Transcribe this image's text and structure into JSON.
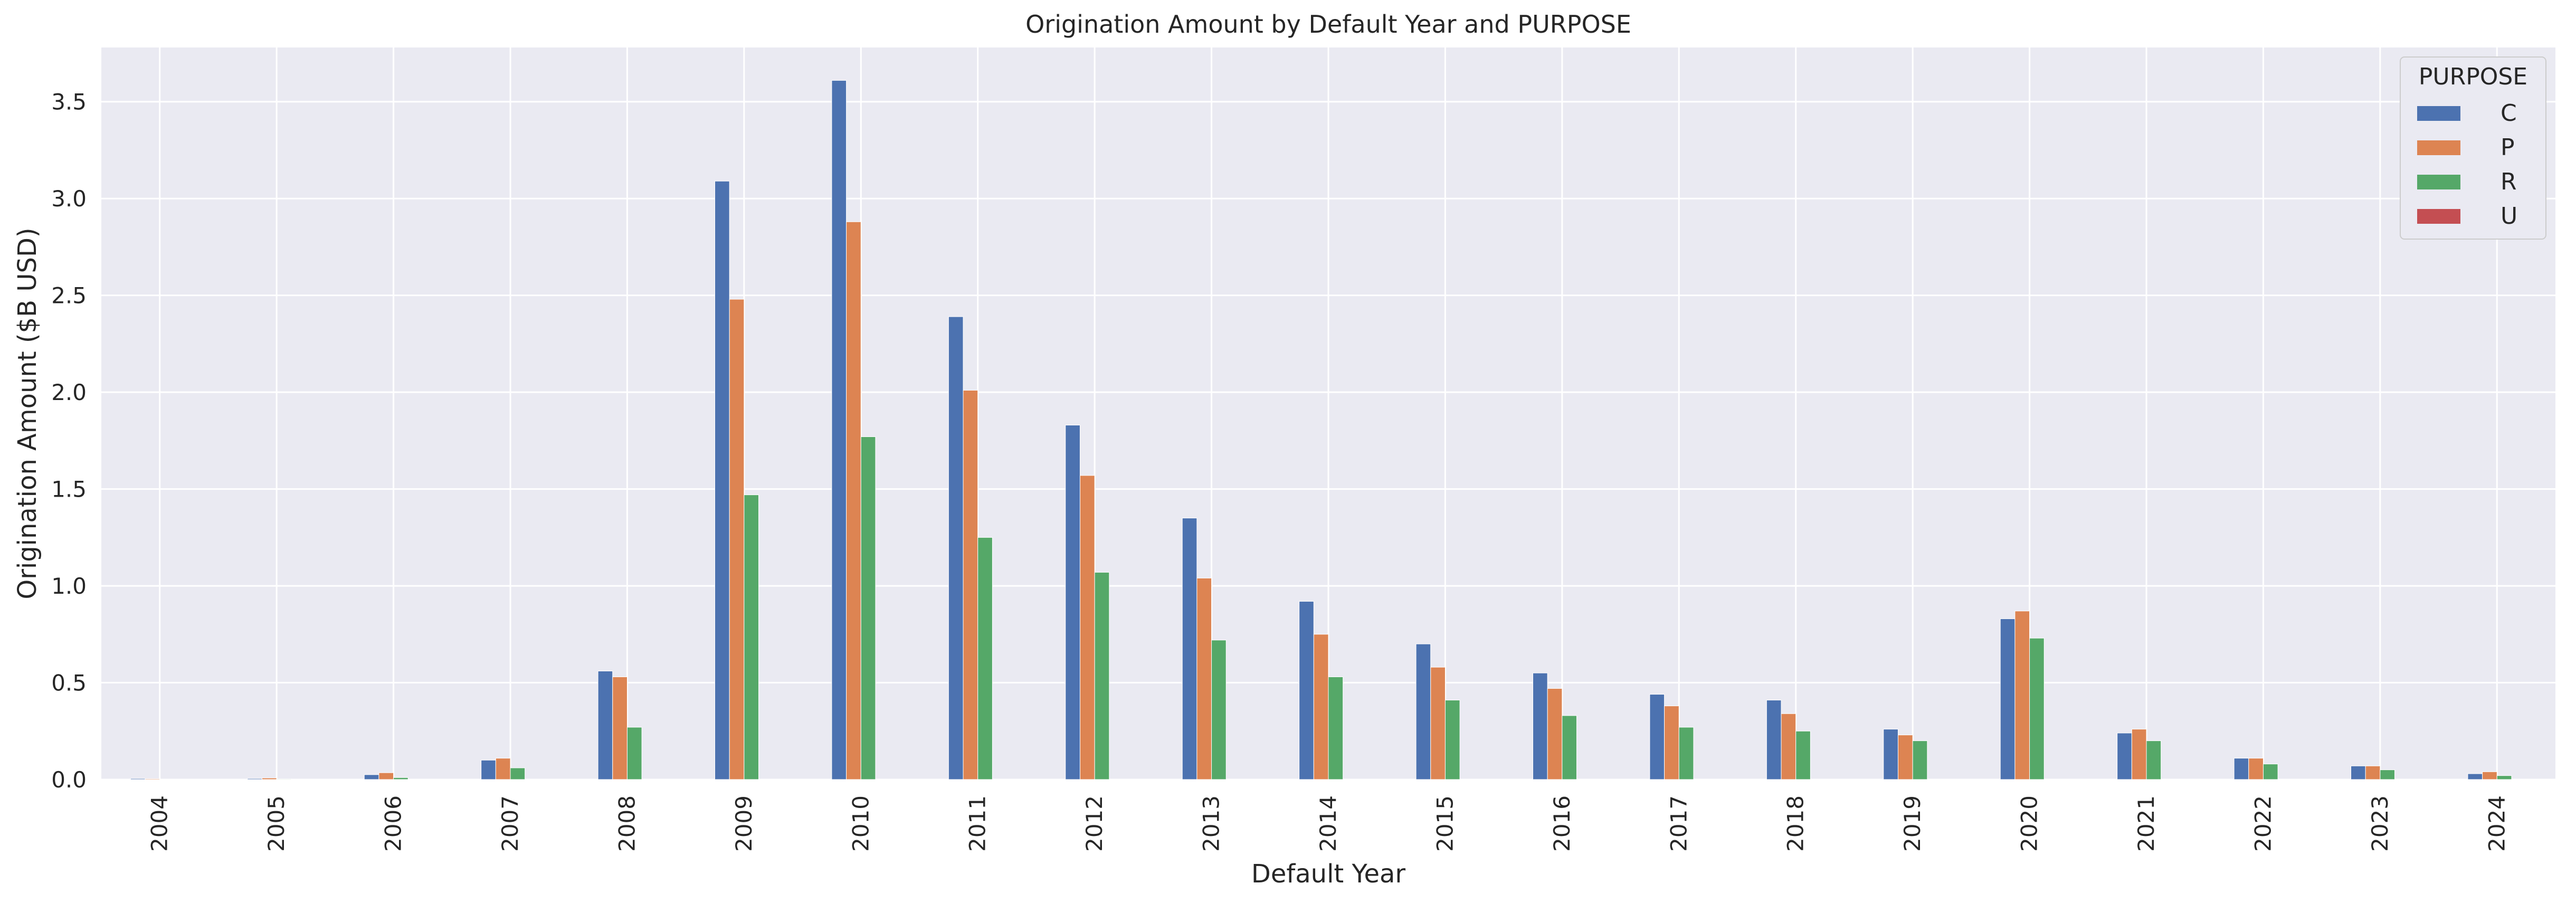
{
  "chart_data": {
    "type": "bar",
    "title": "Origination Amount by Default Year and PURPOSE",
    "xlabel": "Default Year",
    "ylabel": "Origination Amount ($B USD)",
    "categories": [
      "2004",
      "2005",
      "2006",
      "2007",
      "2008",
      "2009",
      "2010",
      "2011",
      "2012",
      "2013",
      "2014",
      "2015",
      "2016",
      "2017",
      "2018",
      "2019",
      "2020",
      "2021",
      "2022",
      "2023",
      "2024"
    ],
    "ylim": [
      0,
      3.78
    ],
    "yticks": [
      "0.0",
      "0.5",
      "1.0",
      "1.5",
      "2.0",
      "2.5",
      "3.0",
      "3.5"
    ],
    "ytick_values": [
      0,
      0.5,
      1.0,
      1.5,
      2.0,
      2.5,
      3.0,
      3.5
    ],
    "grid": true,
    "legend": {
      "title": "PURPOSE",
      "placement": "top-right"
    },
    "series": [
      {
        "name": "C",
        "color": "#4c72b0",
        "values": [
          0.005,
          0.005,
          0.025,
          0.1,
          0.56,
          3.09,
          3.61,
          2.39,
          1.83,
          1.35,
          0.92,
          0.7,
          0.55,
          0.44,
          0.41,
          0.26,
          0.83,
          0.24,
          0.11,
          0.07,
          0.03
        ]
      },
      {
        "name": "P",
        "color": "#dd8452",
        "values": [
          0.004,
          0.008,
          0.035,
          0.11,
          0.53,
          2.48,
          2.88,
          2.01,
          1.57,
          1.04,
          0.75,
          0.58,
          0.47,
          0.38,
          0.34,
          0.23,
          0.87,
          0.26,
          0.11,
          0.07,
          0.04
        ]
      },
      {
        "name": "R",
        "color": "#55a868",
        "values": [
          0.002,
          0.003,
          0.01,
          0.06,
          0.27,
          1.47,
          1.77,
          1.25,
          1.07,
          0.72,
          0.53,
          0.41,
          0.33,
          0.27,
          0.25,
          0.2,
          0.73,
          0.2,
          0.08,
          0.05,
          0.02
        ]
      },
      {
        "name": "U",
        "color": "#c44e52",
        "values": [
          0,
          0,
          0,
          0,
          0,
          0,
          0,
          0,
          0,
          0,
          0,
          0,
          0,
          0,
          0,
          0,
          0,
          0,
          0,
          0,
          0
        ]
      }
    ]
  }
}
